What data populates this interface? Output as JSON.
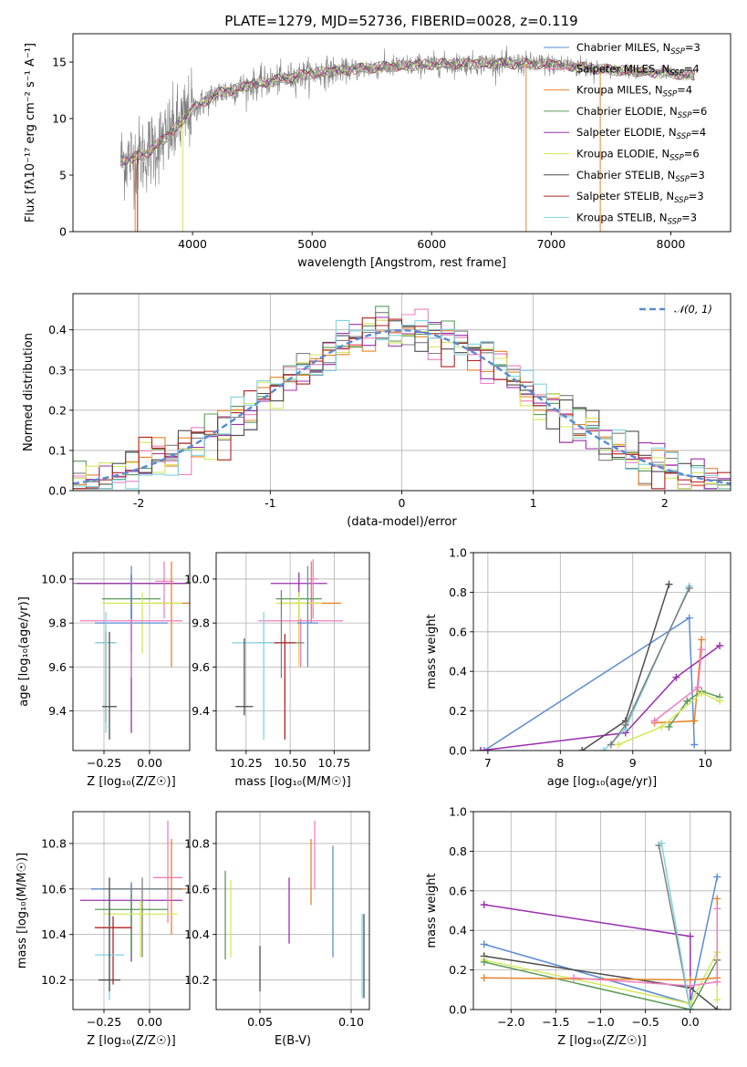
{
  "figure_title": "PLATE=1279, MJD=52736, FIBERID=0028, z=0.119",
  "palette": [
    "#7f7f7f",
    "#f07ec0",
    "#e8832a",
    "#5a9a5a",
    "#9b2fae",
    "#d4e85a",
    "#4d4d4d",
    "#b22222",
    "#7fd4e0",
    "#5b8bd4"
  ],
  "chart_data": [
    {
      "id": "spectrum",
      "type": "line",
      "title": "PLATE=1279, MJD=52736, FIBERID=0028, z=0.119",
      "xlabel": "wavelength [Angstrom, rest frame]",
      "ylabel": "Flux [f$_\\lambda$ 10$^{-17}$ erg cm$^{-2}$ s$^{-1}$ A$^{-1}$]",
      "ylabel_text": "Flux [fλ10⁻¹⁷ erg cm⁻² s⁻¹ A⁻¹]",
      "xlim": [
        3000,
        8500
      ],
      "ylim": [
        0,
        17.5
      ],
      "xticks": [
        4000,
        5000,
        6000,
        7000,
        8000
      ],
      "yticks": [
        0,
        5,
        10,
        15
      ],
      "data_range": [
        3400,
        8200
      ],
      "continuum": [
        [
          3400,
          6.3
        ],
        [
          3600,
          6.8
        ],
        [
          3800,
          8.5
        ],
        [
          4000,
          10.8
        ],
        [
          4200,
          12.2
        ],
        [
          4500,
          13.0
        ],
        [
          4800,
          13.6
        ],
        [
          5000,
          14.0
        ],
        [
          5500,
          14.5
        ],
        [
          6000,
          14.8
        ],
        [
          6500,
          14.9
        ],
        [
          7000,
          14.8
        ],
        [
          7500,
          14.3
        ],
        [
          8000,
          14.0
        ],
        [
          8200,
          13.8
        ]
      ],
      "legend": [
        "Chabrier MILES, N$_{SSP}$=3",
        "Salpeter MILES, N$_{SSP}$=4",
        "Kroupa MILES, N$_{SSP}$=4",
        "Chabrier ELODIE, N$_{SSP}$=6",
        "Salpeter ELODIE, N$_{SSP}$=4",
        "Kroupa ELODIE, N$_{SSP}$=6",
        "Chabrier STELIB, N$_{SSP}$=3",
        "Salpeter STELIB, N$_{SSP}$=3",
        "Kroupa STELIB, N$_{SSP}$=3"
      ],
      "legend_labels": [
        {
          "pre": "Chabrier MILES, N",
          "sub": "SSP",
          "post": "=3"
        },
        {
          "pre": "Salpeter MILES, N",
          "sub": "SSP",
          "post": "=4"
        },
        {
          "pre": "Kroupa MILES, N",
          "sub": "SSP",
          "post": "=4"
        },
        {
          "pre": "Chabrier ELODIE, N",
          "sub": "SSP",
          "post": "=6"
        },
        {
          "pre": "Salpeter ELODIE, N",
          "sub": "SSP",
          "post": "=4"
        },
        {
          "pre": "Kroupa ELODIE, N",
          "sub": "SSP",
          "post": "=6"
        },
        {
          "pre": "Chabrier STELIB, N",
          "sub": "SSP",
          "post": "=3"
        },
        {
          "pre": "Salpeter STELIB, N",
          "sub": "SSP",
          "post": "=3"
        },
        {
          "pre": "Kroupa STELIB, N",
          "sub": "SSP",
          "post": "=3"
        }
      ],
      "legend_colors": [
        "#5b8bd4",
        "#f07ec0",
        "#e8832a",
        "#5a9a5a",
        "#9b2fae",
        "#d4e85a",
        "#4d4d4d",
        "#b22222",
        "#7fd4e0"
      ],
      "legend_placement": "right"
    },
    {
      "id": "residuals",
      "type": "step",
      "xlabel": "(data-model)/error",
      "ylabel": "Normed distribution",
      "xlim": [
        -2.5,
        2.5
      ],
      "ylim": [
        0,
        0.49
      ],
      "xticks": [
        -2,
        -1,
        0,
        1,
        2
      ],
      "yticks": [
        0.0,
        0.1,
        0.2,
        0.3,
        0.4
      ],
      "grid": true,
      "reference": {
        "name": "𝒩(0, 1)",
        "mu": 0,
        "sigma": 1,
        "color": "#5b8bd4"
      },
      "legend_placement": "top-right"
    },
    {
      "id": "age-Z",
      "type": "errorbar",
      "xlabel": "Z [log₁₀(Z/Z☉)]",
      "ylabel": "age  [log₁₀(age/yr)]",
      "xlim": [
        -0.42,
        0.22
      ],
      "ylim": [
        9.22,
        10.12
      ],
      "xticks": [
        -0.25,
        0.0
      ],
      "xtick_labels": [
        "−0.25",
        "0.00"
      ],
      "yticks": [
        9.4,
        9.6,
        9.8,
        10.0
      ],
      "points": [
        {
          "x": -0.1,
          "xerr": 0.38,
          "y": 9.98,
          "ylo": 9.66,
          "yhi": 10.02,
          "c": 0
        },
        {
          "x": -0.1,
          "xerr": 0.3,
          "y": 9.98,
          "ylo": 9.3,
          "yhi": 10.02,
          "c": 4
        },
        {
          "x": 0.08,
          "xerr": 0.05,
          "y": 9.99,
          "ylo": 9.82,
          "yhi": 10.08,
          "c": 1
        },
        {
          "x": 0.12,
          "xerr": 0.1,
          "y": 9.89,
          "ylo": 9.6,
          "yhi": 10.08,
          "c": 2
        },
        {
          "x": -0.1,
          "xerr": 0.16,
          "y": 9.91,
          "ylo": 9.66,
          "yhi": 9.92,
          "c": 3
        },
        {
          "x": -0.04,
          "xerr": 0.22,
          "y": 9.89,
          "ylo": 9.66,
          "yhi": 9.94,
          "c": 5
        },
        {
          "x": -0.1,
          "xerr": 0.2,
          "y": 9.8,
          "ylo": 9.55,
          "yhi": 10.06,
          "c": 9
        },
        {
          "x": -0.1,
          "xerr": 0.28,
          "y": 9.81,
          "ylo": 9.55,
          "yhi": 9.82,
          "c": 1
        },
        {
          "x": -0.24,
          "xerr": 0.05,
          "y": 9.71,
          "ylo": 9.35,
          "yhi": 9.76,
          "c": 7
        },
        {
          "x": -0.24,
          "xerr": 0.06,
          "y": 9.71,
          "ylo": 9.3,
          "yhi": 9.85,
          "c": 8
        },
        {
          "x": -0.22,
          "xerr": 0.04,
          "y": 9.42,
          "ylo": 9.27,
          "yhi": 9.76,
          "c": 6
        }
      ]
    },
    {
      "id": "age-mass",
      "type": "errorbar",
      "xlabel": "mass [log₁₀(M/M☉)]",
      "ylabel": "",
      "xlim": [
        10.08,
        10.95
      ],
      "ylim": [
        9.22,
        10.12
      ],
      "xticks": [
        10.25,
        10.5,
        10.75
      ],
      "xtick_labels": [
        "10.25",
        "10.50",
        "10.75"
      ],
      "yticks": [
        9.4,
        9.6,
        9.8,
        10.0
      ],
      "points": [
        {
          "x": 10.55,
          "xerr": 0.16,
          "y": 9.98,
          "ylo": 9.74,
          "yhi": 10.03,
          "c": 4
        },
        {
          "x": 10.63,
          "xerr": 0.03,
          "y": 10.0,
          "ylo": 9.82,
          "yhi": 10.09,
          "c": 1
        },
        {
          "x": 10.62,
          "xerr": 0.17,
          "y": 9.89,
          "ylo": 9.8,
          "yhi": 10.08,
          "c": 2
        },
        {
          "x": 10.55,
          "xerr": 0.13,
          "y": 9.91,
          "ylo": 9.62,
          "yhi": 9.92,
          "c": 3
        },
        {
          "x": 10.55,
          "xerr": 0.13,
          "y": 9.89,
          "ylo": 9.6,
          "yhi": 9.94,
          "c": 5
        },
        {
          "x": 10.56,
          "xerr": 0.24,
          "y": 9.81,
          "ylo": 9.6,
          "yhi": 9.82,
          "c": 1
        },
        {
          "x": 10.6,
          "xerr": 0.06,
          "y": 9.8,
          "ylo": 9.6,
          "yhi": 10.06,
          "c": 9
        },
        {
          "x": 10.45,
          "xerr": 0.13,
          "y": 9.71,
          "ylo": 9.55,
          "yhi": 9.95,
          "c": 0
        },
        {
          "x": 10.35,
          "xerr": 0.18,
          "y": 9.71,
          "ylo": 9.27,
          "yhi": 9.85,
          "c": 8
        },
        {
          "x": 10.47,
          "xerr": 0.06,
          "y": 9.71,
          "ylo": 9.27,
          "yhi": 9.75,
          "c": 7
        },
        {
          "x": 10.24,
          "xerr": 0.05,
          "y": 9.42,
          "ylo": 9.38,
          "yhi": 9.73,
          "c": 6
        }
      ]
    },
    {
      "id": "weight-age",
      "type": "line",
      "xlabel": "age  [log₁₀(age/yr)]",
      "ylabel": "mass weight",
      "xlim": [
        6.8,
        10.35
      ],
      "ylim": [
        0,
        1.0
      ],
      "xticks": [
        7,
        8,
        9,
        10
      ],
      "yticks": [
        0.0,
        0.2,
        0.4,
        0.6,
        0.8,
        1.0
      ],
      "series": [
        {
          "c": 9,
          "x": [
            6.95,
            9.78,
            9.85
          ],
          "y": [
            0.0,
            0.67,
            0.03
          ]
        },
        {
          "c": 4,
          "x": [
            6.9,
            8.9,
            9.6,
            10.2
          ],
          "y": [
            0.0,
            0.09,
            0.37,
            0.53
          ]
        },
        {
          "c": 6,
          "x": [
            8.3,
            8.9,
            9.5
          ],
          "y": [
            0.0,
            0.15,
            0.84
          ]
        },
        {
          "c": 8,
          "x": [
            8.6,
            8.9,
            9.78
          ],
          "y": [
            0.0,
            0.11,
            0.83
          ]
        },
        {
          "c": 0,
          "x": [
            8.7,
            8.9,
            9.78
          ],
          "y": [
            0.03,
            0.13,
            0.82
          ]
        },
        {
          "c": 2,
          "x": [
            9.3,
            9.85,
            9.95
          ],
          "y": [
            0.14,
            0.15,
            0.56
          ]
        },
        {
          "c": 1,
          "x": [
            9.3,
            9.9,
            9.95
          ],
          "y": [
            0.15,
            0.32,
            0.51
          ]
        },
        {
          "c": 3,
          "x": [
            9.5,
            9.75,
            9.95,
            10.2
          ],
          "y": [
            0.12,
            0.25,
            0.3,
            0.27
          ]
        },
        {
          "c": 5,
          "x": [
            8.8,
            9.4,
            9.95,
            10.2
          ],
          "y": [
            0.03,
            0.12,
            0.29,
            0.25
          ]
        }
      ]
    },
    {
      "id": "mass-Z",
      "type": "errorbar",
      "xlabel": "Z [log₁₀(Z/Z☉)]",
      "ylabel": "mass [log₁₀(M/M☉)]",
      "xlim": [
        -0.42,
        0.22
      ],
      "ylim": [
        10.07,
        10.94
      ],
      "xticks": [
        -0.25,
        0.0
      ],
      "xtick_labels": [
        "−0.25",
        "0.00"
      ],
      "yticks": [
        10.2,
        10.4,
        10.6,
        10.8
      ],
      "points": [
        {
          "x": -0.1,
          "xerr": 0.28,
          "y": 10.55,
          "ylo": 10.28,
          "yhi": 10.62,
          "c": 4
        },
        {
          "x": 0.1,
          "xerr": 0.08,
          "y": 10.65,
          "ylo": 10.45,
          "yhi": 10.9,
          "c": 1
        },
        {
          "x": 0.12,
          "xerr": 0.08,
          "y": 10.6,
          "ylo": 10.4,
          "yhi": 10.82,
          "c": 2
        },
        {
          "x": -0.1,
          "xerr": 0.22,
          "y": 10.6,
          "ylo": 10.3,
          "yhi": 10.63,
          "c": 9
        },
        {
          "x": -0.04,
          "xerr": 0.22,
          "y": 10.6,
          "ylo": 10.3,
          "yhi": 10.65,
          "c": 0
        },
        {
          "x": -0.1,
          "xerr": 0.2,
          "y": 10.51,
          "ylo": 10.3,
          "yhi": 10.58,
          "c": 3
        },
        {
          "x": -0.05,
          "xerr": 0.2,
          "y": 10.49,
          "ylo": 10.3,
          "yhi": 10.55,
          "c": 5
        },
        {
          "x": -0.2,
          "xerr": 0.1,
          "y": 10.43,
          "ylo": 10.18,
          "yhi": 10.48,
          "c": 7
        },
        {
          "x": -0.22,
          "xerr": 0.08,
          "y": 10.31,
          "ylo": 10.11,
          "yhi": 10.6,
          "c": 8
        },
        {
          "x": -0.22,
          "xerr": 0.06,
          "y": 10.2,
          "ylo": 10.15,
          "yhi": 10.65,
          "c": 6
        }
      ]
    },
    {
      "id": "mass-EBV",
      "type": "errorbar",
      "xlabel": "E(B-V)",
      "ylabel": "",
      "xlim": [
        0.026,
        0.11
      ],
      "ylim": [
        10.07,
        10.94
      ],
      "xticks": [
        0.05,
        0.1
      ],
      "xtick_labels": [
        "0.05",
        "0.10"
      ],
      "yticks": [
        10.2,
        10.4,
        10.6,
        10.8
      ],
      "points": [
        {
          "x": 0.031,
          "xerr": 0,
          "y": 10.48,
          "ylo": 10.29,
          "yhi": 10.68,
          "c": 3
        },
        {
          "x": 0.034,
          "xerr": 0,
          "y": 10.47,
          "ylo": 10.3,
          "yhi": 10.64,
          "c": 5
        },
        {
          "x": 0.05,
          "xerr": 0,
          "y": 10.25,
          "ylo": 10.15,
          "yhi": 10.35,
          "c": 6
        },
        {
          "x": 0.066,
          "xerr": 0,
          "y": 10.5,
          "ylo": 10.36,
          "yhi": 10.65,
          "c": 4
        },
        {
          "x": 0.078,
          "xerr": 0,
          "y": 10.66,
          "ylo": 10.53,
          "yhi": 10.82,
          "c": 2
        },
        {
          "x": 0.08,
          "xerr": 0,
          "y": 10.75,
          "ylo": 10.6,
          "yhi": 10.9,
          "c": 1
        },
        {
          "x": 0.09,
          "xerr": 0,
          "y": 10.55,
          "ylo": 10.3,
          "yhi": 10.79,
          "c": 9
        },
        {
          "x": 0.106,
          "xerr": 0,
          "y": 10.3,
          "ylo": 10.12,
          "yhi": 10.49,
          "c": 8
        },
        {
          "x": 0.107,
          "xerr": 0,
          "y": 10.3,
          "ylo": 10.12,
          "yhi": 10.49,
          "c": 6
        }
      ]
    },
    {
      "id": "weight-Z",
      "type": "line",
      "xlabel": "Z [log₁₀(Z/Z☉)]",
      "ylabel": "mass weight",
      "xlim": [
        -2.42,
        0.45
      ],
      "ylim": [
        0,
        1.0
      ],
      "xticks": [
        -2.0,
        -1.5,
        -1.0,
        -0.5,
        0.0
      ],
      "xtick_labels": [
        "−2.0",
        "−1.5",
        "−1.0",
        "−0.5",
        "0.0"
      ],
      "yticks": [
        0.0,
        0.2,
        0.4,
        0.6,
        0.8,
        1.0
      ],
      "series": [
        {
          "c": 4,
          "x": [
            -2.3,
            0.0,
            0.0
          ],
          "y": [
            0.53,
            0.37,
            0.0
          ]
        },
        {
          "c": 9,
          "x": [
            -2.3,
            0.0,
            0.3
          ],
          "y": [
            0.33,
            0.03,
            0.67
          ]
        },
        {
          "c": 6,
          "x": [
            -2.3,
            0.0,
            0.3
          ],
          "y": [
            0.27,
            0.11,
            0.0
          ]
        },
        {
          "c": 5,
          "x": [
            -2.3,
            0.0,
            0.3,
            0.3
          ],
          "y": [
            0.25,
            0.03,
            0.29,
            0.05
          ]
        },
        {
          "c": 3,
          "x": [
            -2.3,
            0.0,
            0.3
          ],
          "y": [
            0.24,
            0.0,
            0.25
          ]
        },
        {
          "c": 2,
          "x": [
            -2.3,
            0.0,
            0.3,
            0.3
          ],
          "y": [
            0.16,
            0.15,
            0.16,
            0.56
          ]
        },
        {
          "c": 1,
          "x": [
            -1.3,
            0.0,
            0.3,
            0.3
          ],
          "y": [
            0.16,
            0.12,
            0.14,
            0.51
          ]
        },
        {
          "c": 0,
          "x": [
            -0.35,
            0.0
          ],
          "y": [
            0.83,
            0.0
          ]
        },
        {
          "c": 8,
          "x": [
            -0.32,
            0.0
          ],
          "y": [
            0.84,
            0.0
          ]
        }
      ]
    }
  ]
}
